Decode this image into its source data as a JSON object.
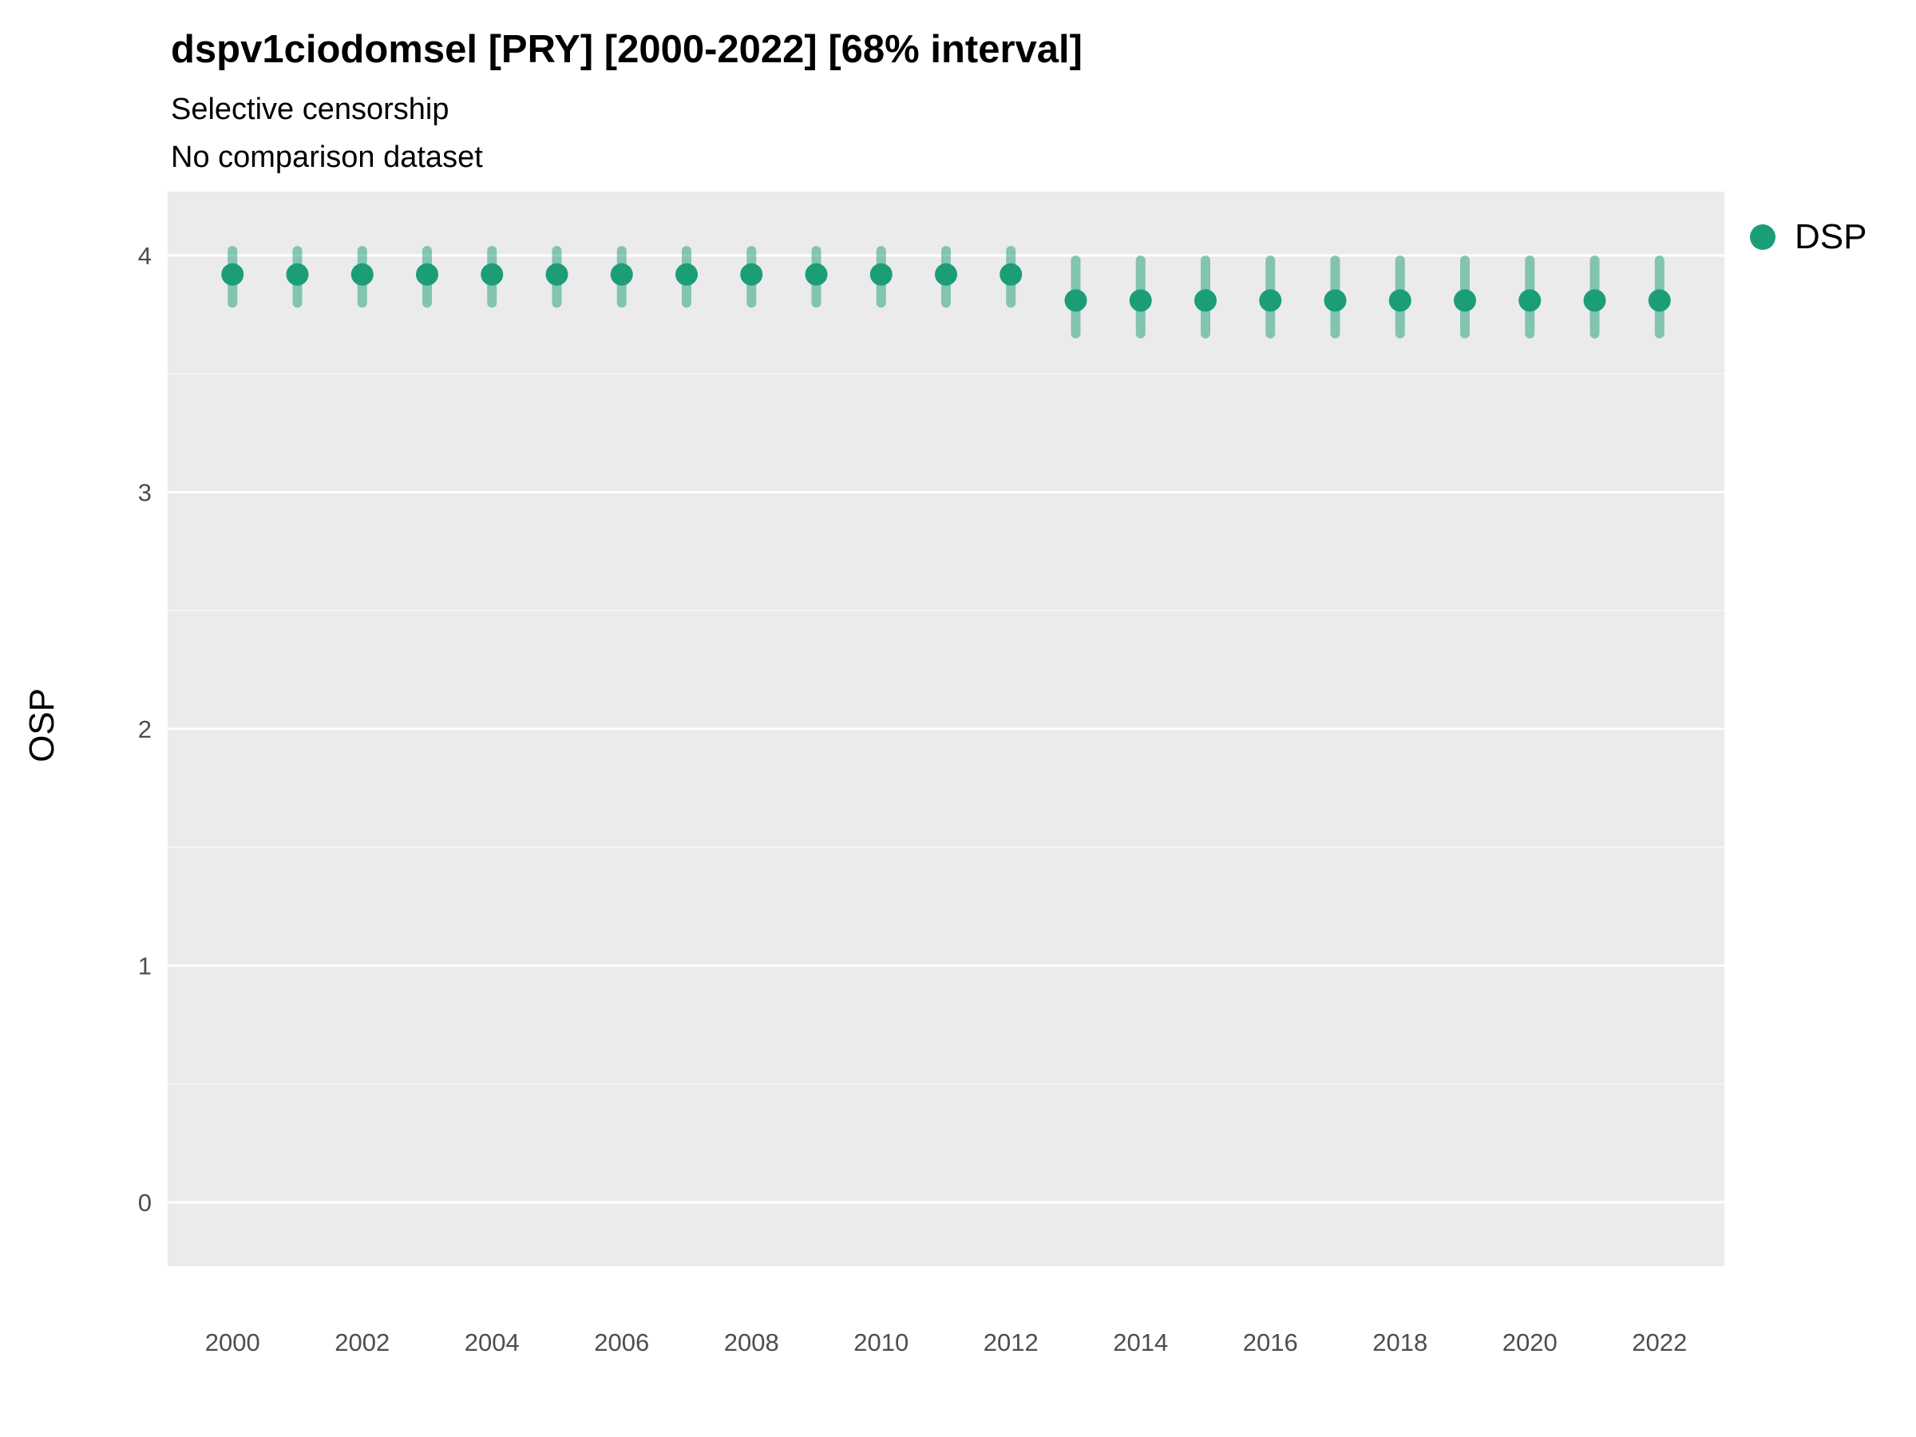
{
  "chart_data": {
    "type": "scatter",
    "title": "dspv1ciodomsel [PRY] [2000-2022] [68% interval]",
    "subtitle": "Selective censorship",
    "subtitle2": "No comparison dataset",
    "xlabel": "",
    "ylabel": "OSP",
    "legend_position": "right",
    "grid": true,
    "panel_background": "#ebebeb",
    "gridline_color": "#ffffff",
    "xlim": [
      1999.0,
      2023.0
    ],
    "ylim": [
      -0.27,
      4.27
    ],
    "x_ticks": [
      2000,
      2002,
      2004,
      2006,
      2008,
      2010,
      2012,
      2014,
      2016,
      2018,
      2020,
      2022
    ],
    "y_ticks": [
      0,
      1,
      2,
      3,
      4
    ],
    "legend": [
      {
        "label": "DSP",
        "color": "#1b9e77"
      }
    ],
    "series": [
      {
        "name": "DSP",
        "color": "#1b9e77",
        "points": [
          {
            "x": 2000,
            "y": 3.92,
            "lo": 3.8,
            "hi": 4.02
          },
          {
            "x": 2001,
            "y": 3.92,
            "lo": 3.8,
            "hi": 4.02
          },
          {
            "x": 2002,
            "y": 3.92,
            "lo": 3.8,
            "hi": 4.02
          },
          {
            "x": 2003,
            "y": 3.92,
            "lo": 3.8,
            "hi": 4.02
          },
          {
            "x": 2004,
            "y": 3.92,
            "lo": 3.8,
            "hi": 4.02
          },
          {
            "x": 2005,
            "y": 3.92,
            "lo": 3.8,
            "hi": 4.02
          },
          {
            "x": 2006,
            "y": 3.92,
            "lo": 3.8,
            "hi": 4.02
          },
          {
            "x": 2007,
            "y": 3.92,
            "lo": 3.8,
            "hi": 4.02
          },
          {
            "x": 2008,
            "y": 3.92,
            "lo": 3.8,
            "hi": 4.02
          },
          {
            "x": 2009,
            "y": 3.92,
            "lo": 3.8,
            "hi": 4.02
          },
          {
            "x": 2010,
            "y": 3.92,
            "lo": 3.8,
            "hi": 4.02
          },
          {
            "x": 2011,
            "y": 3.92,
            "lo": 3.8,
            "hi": 4.02
          },
          {
            "x": 2012,
            "y": 3.92,
            "lo": 3.8,
            "hi": 4.02
          },
          {
            "x": 2013,
            "y": 3.81,
            "lo": 3.67,
            "hi": 3.98
          },
          {
            "x": 2014,
            "y": 3.81,
            "lo": 3.67,
            "hi": 3.98
          },
          {
            "x": 2015,
            "y": 3.81,
            "lo": 3.67,
            "hi": 3.98
          },
          {
            "x": 2016,
            "y": 3.81,
            "lo": 3.67,
            "hi": 3.98
          },
          {
            "x": 2017,
            "y": 3.81,
            "lo": 3.67,
            "hi": 3.98
          },
          {
            "x": 2018,
            "y": 3.81,
            "lo": 3.67,
            "hi": 3.98
          },
          {
            "x": 2019,
            "y": 3.81,
            "lo": 3.67,
            "hi": 3.98
          },
          {
            "x": 2020,
            "y": 3.81,
            "lo": 3.67,
            "hi": 3.98
          },
          {
            "x": 2021,
            "y": 3.81,
            "lo": 3.67,
            "hi": 3.98
          },
          {
            "x": 2022,
            "y": 3.81,
            "lo": 3.67,
            "hi": 3.98
          }
        ]
      }
    ]
  }
}
